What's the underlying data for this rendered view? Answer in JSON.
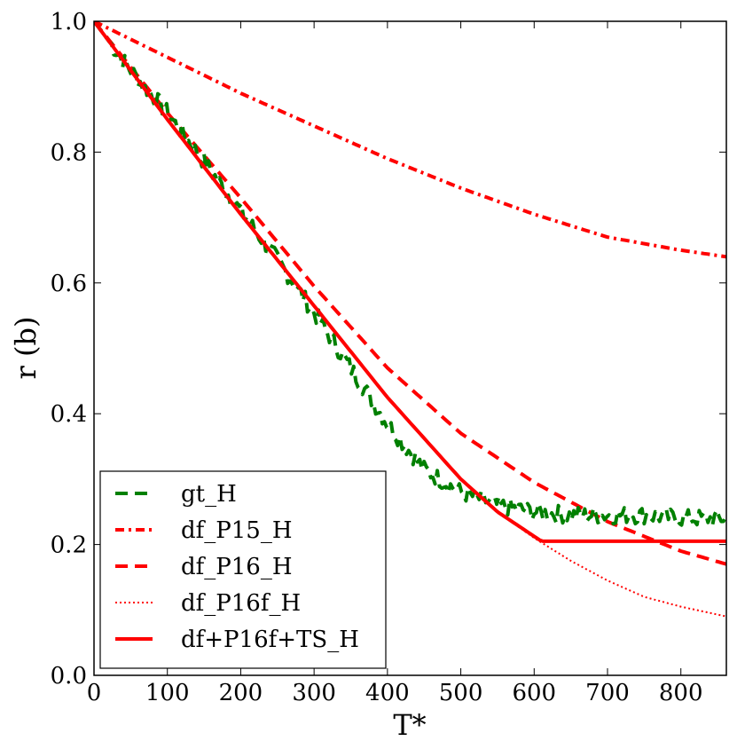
{
  "chart_data": {
    "type": "line",
    "title": "",
    "xlabel": "T*",
    "ylabel": "r (b)",
    "xlim": [
      0,
      862
    ],
    "ylim": [
      0.0,
      1.0
    ],
    "x_ticks": [
      0,
      100,
      200,
      300,
      400,
      500,
      600,
      700,
      800
    ],
    "y_ticks": [
      0.0,
      0.2,
      0.4,
      0.6,
      0.8,
      1.0
    ],
    "x_tick_labels": [
      "0",
      "100",
      "200",
      "300",
      "400",
      "500",
      "600",
      "700",
      "800"
    ],
    "y_tick_labels": [
      "0.0",
      "0.2",
      "0.4",
      "0.6",
      "0.8",
      "1.0"
    ],
    "grid": false,
    "legend_position": "lower-left",
    "series": [
      {
        "name": "gt_H",
        "color": "#008000",
        "style": "dashed",
        "noisy": true,
        "x": [
          0,
          50,
          100,
          150,
          200,
          250,
          300,
          350,
          400,
          450,
          500,
          550,
          600,
          650,
          700,
          750,
          800,
          862
        ],
        "y": [
          1.0,
          0.925,
          0.86,
          0.785,
          0.71,
          0.635,
          0.555,
          0.47,
          0.385,
          0.315,
          0.28,
          0.26,
          0.25,
          0.245,
          0.245,
          0.245,
          0.24,
          0.24
        ]
      },
      {
        "name": "df_P15_H",
        "color": "#ff0000",
        "style": "dashdot",
        "x": [
          0,
          100,
          200,
          300,
          400,
          500,
          600,
          700,
          800,
          862
        ],
        "y": [
          1.0,
          0.945,
          0.89,
          0.84,
          0.79,
          0.745,
          0.705,
          0.67,
          0.65,
          0.64
        ]
      },
      {
        "name": "df_P16_H",
        "color": "#ff0000",
        "style": "dashed",
        "x": [
          0,
          100,
          200,
          300,
          400,
          500,
          600,
          700,
          800,
          862
        ],
        "y": [
          1.0,
          0.86,
          0.73,
          0.595,
          0.47,
          0.37,
          0.295,
          0.235,
          0.19,
          0.17
        ]
      },
      {
        "name": "df_P16f_H",
        "color": "#ff0000",
        "style": "dotted",
        "x": [
          0,
          100,
          200,
          300,
          400,
          500,
          550,
          600,
          650,
          700,
          750,
          800,
          862
        ],
        "y": [
          1.0,
          0.85,
          0.705,
          0.565,
          0.425,
          0.3,
          0.25,
          0.21,
          0.175,
          0.145,
          0.12,
          0.105,
          0.09
        ]
      },
      {
        "name": "df+P16f+TS_H",
        "color": "#ff0000",
        "style": "solid",
        "x": [
          0,
          100,
          200,
          300,
          400,
          500,
          550,
          610,
          862
        ],
        "y": [
          1.0,
          0.85,
          0.705,
          0.565,
          0.425,
          0.3,
          0.25,
          0.205,
          0.205
        ]
      }
    ]
  }
}
